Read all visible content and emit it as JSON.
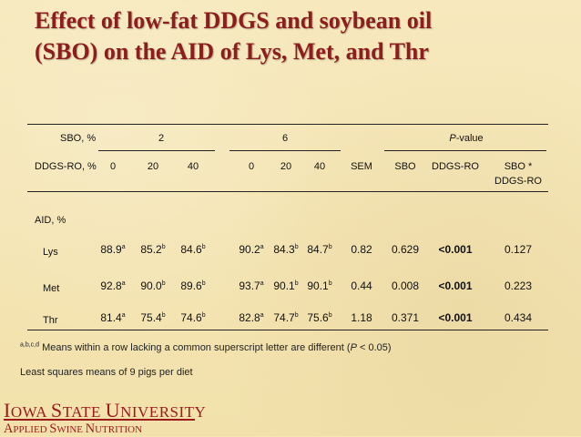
{
  "title": {
    "line1": "Effect of low-fat DDGS and soybean oil",
    "line2": "(SBO) on the AID of Lys, Met, and Thr"
  },
  "table": {
    "header1": {
      "label": "SBO, %",
      "sbo_2": "2",
      "sbo_6": "6",
      "pvalue_prefix": "P",
      "pvalue_suffix": "-value"
    },
    "header2": {
      "label": "DDGS-RO, %",
      "cols": [
        "0",
        "20",
        "40",
        "0",
        "20",
        "40"
      ],
      "sem": "SEM",
      "sbo": "SBO",
      "ddgs": "DDGS-RO",
      "inter_line1": "SBO *",
      "inter_line2": "DDGS-RO"
    },
    "section_label": "AID, %",
    "rows": [
      {
        "name": "Lys",
        "values": [
          {
            "v": "88.9",
            "s": "a"
          },
          {
            "v": "85.2",
            "s": "b"
          },
          {
            "v": "84.6",
            "s": "b"
          },
          {
            "v": "90.2",
            "s": "a"
          },
          {
            "v": "84.3",
            "s": "b"
          },
          {
            "v": "84.7",
            "s": "b"
          }
        ],
        "sem": "0.82",
        "p_sbo": "0.629",
        "p_ddgs": "<0.001",
        "p_inter": "0.127"
      },
      {
        "name": "Met",
        "values": [
          {
            "v": "92.8",
            "s": "a"
          },
          {
            "v": "90.0",
            "s": "b"
          },
          {
            "v": "89.6",
            "s": "b"
          },
          {
            "v": "93.7",
            "s": "a"
          },
          {
            "v": "90.1",
            "s": "b"
          },
          {
            "v": "90.1",
            "s": "b"
          }
        ],
        "sem": "0.44",
        "p_sbo": "0.008",
        "p_ddgs": "<0.001",
        "p_inter": "0.223"
      },
      {
        "name": "Thr",
        "values": [
          {
            "v": "81.4",
            "s": "a"
          },
          {
            "v": "75.4",
            "s": "b"
          },
          {
            "v": "74.6",
            "s": "b"
          },
          {
            "v": "82.8",
            "s": "a"
          },
          {
            "v": "74.7",
            "s": "b"
          },
          {
            "v": "75.6",
            "s": "b"
          }
        ],
        "sem": "1.18",
        "p_sbo": "0.371",
        "p_ddgs": "<0.001",
        "p_inter": "0.434"
      }
    ]
  },
  "footnotes": {
    "sup": "a,b,c,d",
    "note1_a": " Means within a row lacking a common superscript letter are different (",
    "note1_p": "P",
    "note1_b": " < 0.05)",
    "note2": "Least squares means of 9 pigs per diet"
  },
  "logo": {
    "line1": "IOWA STATE UNIVERSITY",
    "line2": "APPLIED SWINE NUTRITION"
  },
  "colors": {
    "background": "#f5e6b4",
    "title": "#8e1d1d",
    "logo": "#9b1b1b"
  }
}
